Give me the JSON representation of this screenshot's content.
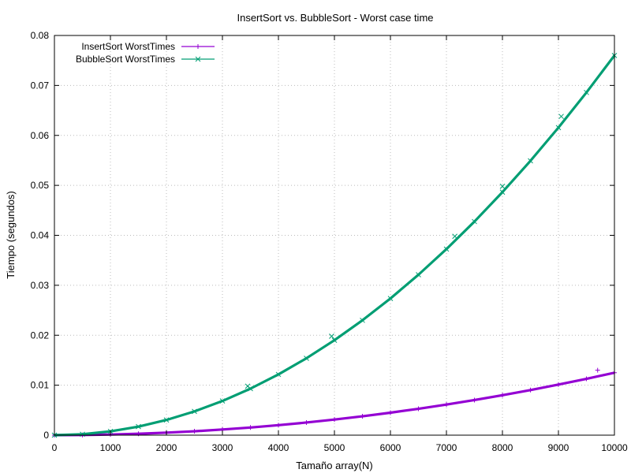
{
  "chart_data": {
    "type": "line",
    "title": "InsertSort vs. BubbleSort - Worst case time",
    "xlabel": "Tamaño array(N)",
    "ylabel": "Tiempo (segundos)",
    "xlim": [
      0,
      10000
    ],
    "ylim": [
      0,
      0.08
    ],
    "xticks": [
      "0",
      "1000",
      "2000",
      "3000",
      "4000",
      "5000",
      "6000",
      "7000",
      "8000",
      "9000",
      "10000"
    ],
    "yticks": [
      "0",
      "0.01",
      "0.02",
      "0.03",
      "0.04",
      "0.05",
      "0.06",
      "0.07",
      "0.08"
    ],
    "grid": true,
    "legend_position": "top-left",
    "x": [
      0,
      500,
      1000,
      1500,
      2000,
      2500,
      3000,
      3500,
      4000,
      4500,
      5000,
      5500,
      6000,
      6500,
      7000,
      7500,
      8000,
      8500,
      9000,
      9500,
      10000
    ],
    "series": [
      {
        "name": "InsertSort WorstTimes",
        "color": "#9400d3",
        "marker": "plus",
        "values": [
          0,
          3e-05,
          0.00013,
          0.00028,
          0.0005,
          0.00078,
          0.00113,
          0.00153,
          0.002,
          0.00253,
          0.00313,
          0.00378,
          0.0045,
          0.00528,
          0.00613,
          0.00703,
          0.008,
          0.00903,
          0.01013,
          0.01128,
          0.0125
        ]
      },
      {
        "name": "BubbleSort WorstTimes",
        "color": "#009e73",
        "marker": "cross",
        "values": [
          0,
          0.00019,
          0.00076,
          0.00171,
          0.00304,
          0.00475,
          0.00684,
          0.00931,
          0.01216,
          0.01539,
          0.019,
          0.02299,
          0.02736,
          0.03211,
          0.03724,
          0.04275,
          0.04864,
          0.05491,
          0.06156,
          0.06859,
          0.076
        ]
      }
    ],
    "outliers": [
      {
        "series": 0,
        "x": 9700,
        "y": 0.013
      },
      {
        "series": 1,
        "x": 4950,
        "y": 0.0198
      },
      {
        "series": 1,
        "x": 3450,
        "y": 0.0098
      },
      {
        "series": 1,
        "x": 7150,
        "y": 0.0398
      },
      {
        "series": 1,
        "x": 8000,
        "y": 0.0498
      },
      {
        "series": 1,
        "x": 9050,
        "y": 0.0638
      }
    ]
  }
}
